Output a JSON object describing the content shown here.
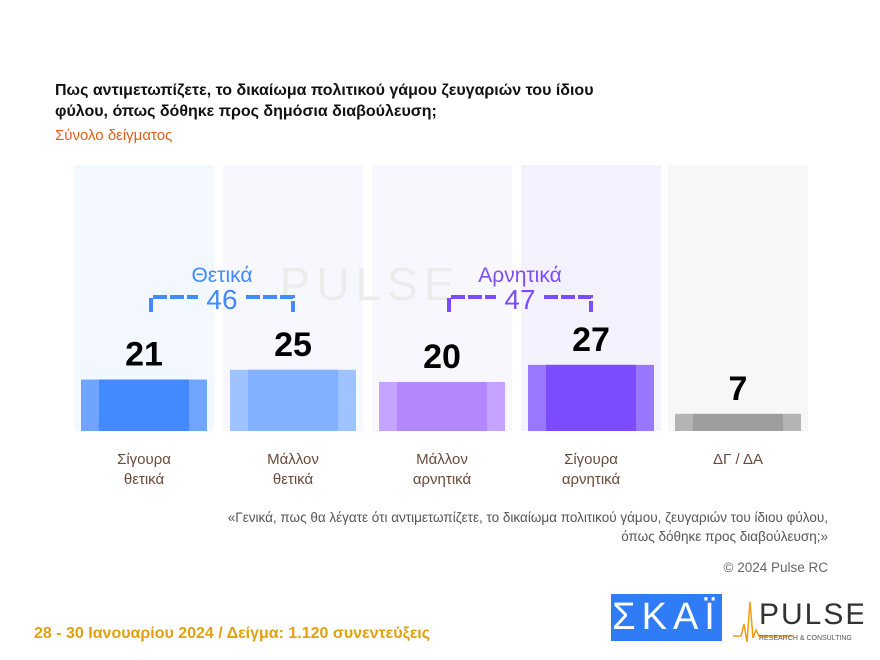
{
  "header": {
    "title": "Πως αντιμετωπίζετε, το δικαίωμα πολιτικού γάμου ζευγαριών του ίδιου φύλου, όπως δόθηκε προς δημόσια διαβούλευση;",
    "subtitle": "Σύνολο δείγματος"
  },
  "chart_data": {
    "type": "bar",
    "categories": [
      [
        "Σίγουρα",
        "θετικά"
      ],
      [
        "Μάλλον",
        "θετικά"
      ],
      [
        "Μάλλον",
        "αρνητικά"
      ],
      [
        "Σίγουρα",
        "αρνητικά"
      ],
      [
        "ΔΓ / ΔΑ",
        ""
      ]
    ],
    "values": [
      21,
      25,
      20,
      27,
      7
    ],
    "colors": [
      "#448aff",
      "#82b1ff",
      "#b388ff",
      "#7c4dff",
      "#9e9e9e"
    ],
    "groups": [
      {
        "label": "Θετικά",
        "total": 46,
        "color": "#448aff"
      },
      {
        "label": "Αρνητικά",
        "total": 47,
        "color": "#7c4dff"
      }
    ]
  },
  "note": [
    "«Γενικά, πως θα λέγατε ότι αντιμετωπίζετε, το δικαίωμα πολιτικού γάμου, ζευγαριών του ίδιου φύλου,",
    "όπως δόθηκε προς διαβούλευση;»"
  ],
  "copyright": "© 2024 Pulse RC",
  "footer": "28 - 30  Ιανουαρίου  2024  /  Δείγμα:  1.120 συνεντεύξεις",
  "logos": {
    "skai": "ΣΚΑΪ",
    "pulse": "PULSE",
    "pulse_sub": "RESEARCH & CONSULTING"
  }
}
